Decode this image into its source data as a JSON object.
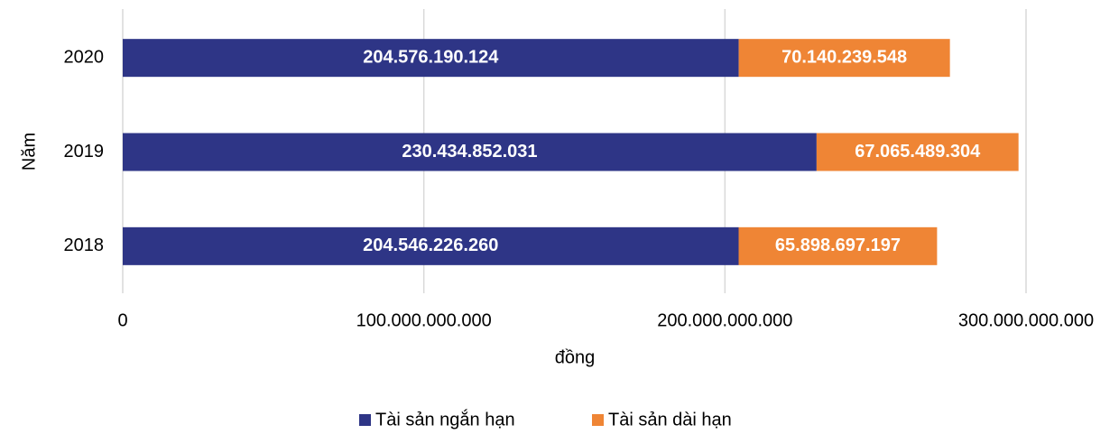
{
  "chart_data": {
    "type": "bar",
    "orientation": "horizontal",
    "stacked": true,
    "xlabel": "đồng",
    "ylabel": "Năm",
    "categories": [
      "2018",
      "2019",
      "2020"
    ],
    "series": [
      {
        "name": "Tài sản ngắn hạn",
        "color": "#2e3586",
        "values": [
          204546226260,
          230434852031,
          204576190124
        ],
        "value_labels": [
          "204.546.226.260",
          "230.434.852.031",
          "204.576.190.124"
        ]
      },
      {
        "name": "Tài sản dài hạn",
        "color": "#ef8535",
        "values": [
          65898697197,
          67065489304,
          70140239548
        ],
        "value_labels": [
          "65.898.697.197",
          "67.065.489.304",
          "70.140.239.548"
        ]
      }
    ],
    "xlim": [
      0,
      300000000000
    ],
    "xticks": [
      0,
      {
        "value": 100000000000,
        "label": "100.000.000.000"
      },
      {
        "value": 200000000000,
        "label": "200.000.000.000"
      },
      {
        "value": 300000000000,
        "label": "300.000.000.000"
      }
    ],
    "grid": true,
    "legend": "bottom"
  }
}
